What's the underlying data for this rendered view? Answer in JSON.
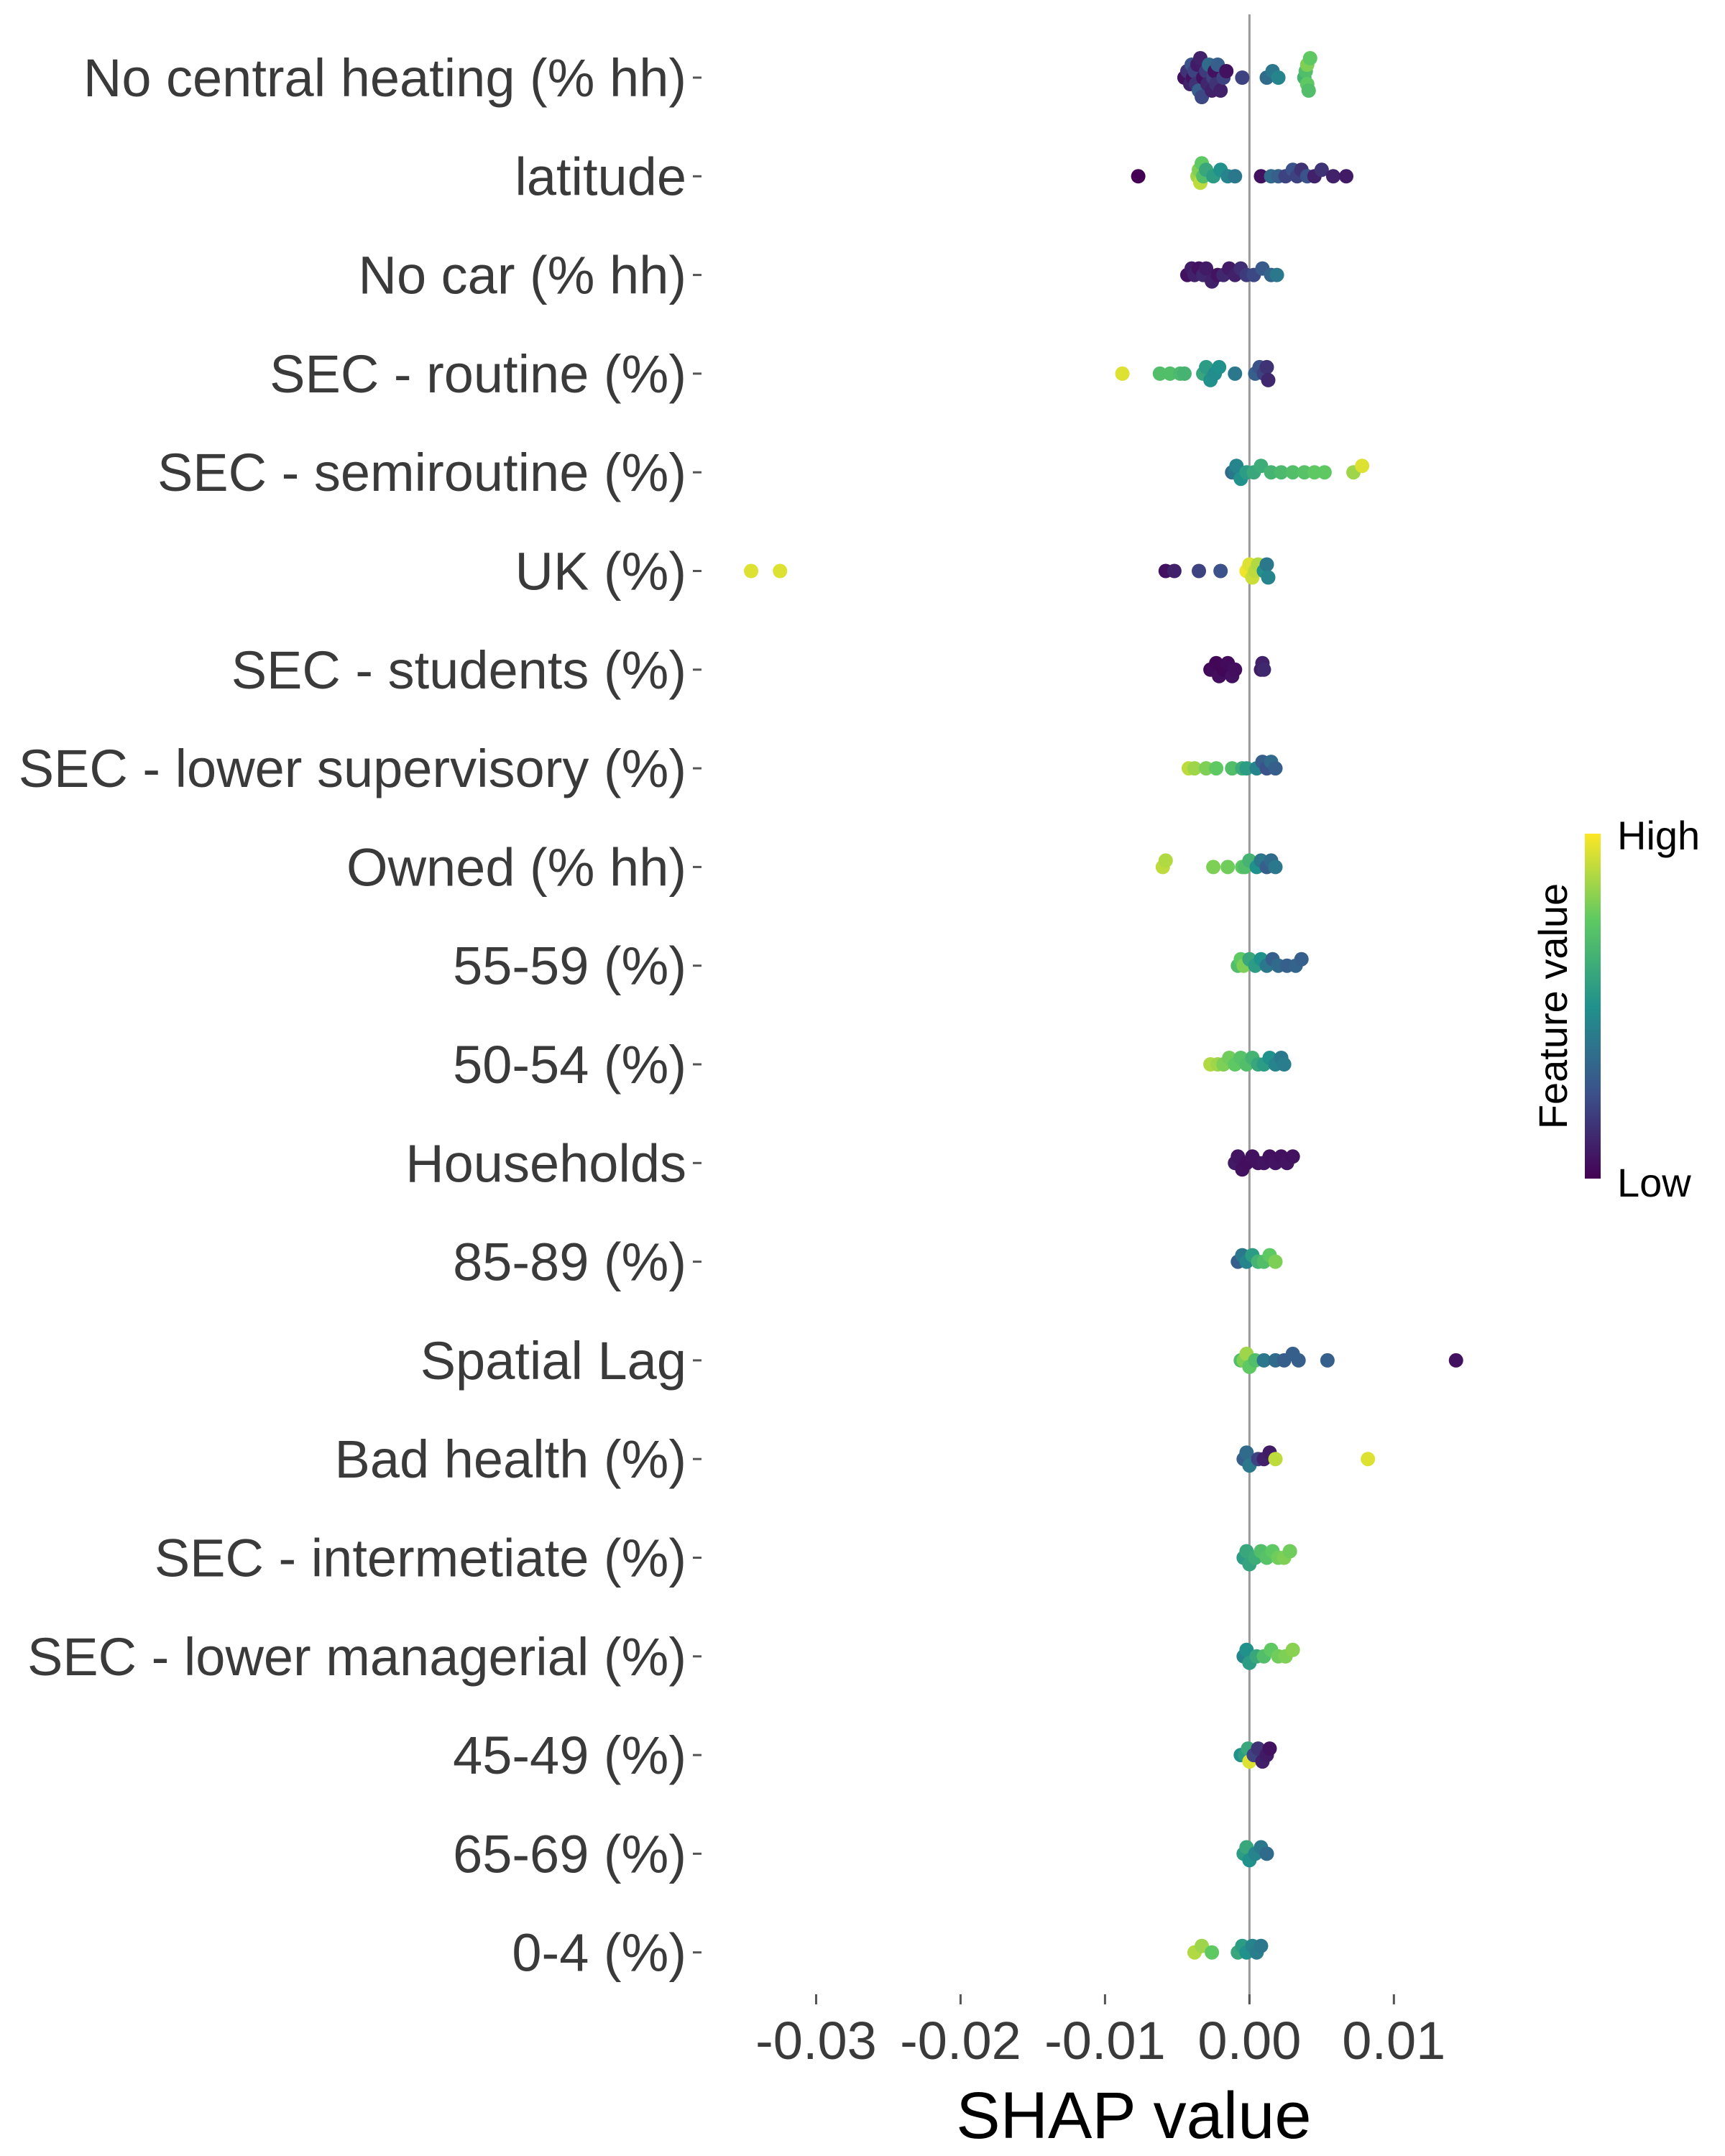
{
  "chart_data": {
    "type": "scatter",
    "subtype": "shap-beeswarm",
    "xlabel": "SHAP value",
    "xlim": [
      -0.035,
      0.017
    ],
    "xticks": [
      -0.03,
      -0.02,
      -0.01,
      0.0,
      0.01
    ],
    "xtick_labels": [
      "-0.03",
      "-0.02",
      "-0.01",
      "0.00",
      "0.01"
    ],
    "zero_line": true,
    "grid": false,
    "legend": {
      "title": "Feature value",
      "high_label": "High",
      "low_label": "Low",
      "placement": "right",
      "colormap": "viridis"
    },
    "features": [
      {
        "name": "No central heating (% hh)",
        "points": [
          [
            -0.0045,
            0.05
          ],
          [
            -0.0043,
            0.15
          ],
          [
            -0.0041,
            0.1
          ],
          [
            -0.004,
            0.25
          ],
          [
            -0.0039,
            0.05
          ],
          [
            -0.0038,
            0.2
          ],
          [
            -0.0037,
            0.15
          ],
          [
            -0.0036,
            0.08
          ],
          [
            -0.0035,
            0.3
          ],
          [
            -0.0034,
            0.1
          ],
          [
            -0.0033,
            0.22
          ],
          [
            -0.0032,
            0.05
          ],
          [
            -0.003,
            0.18
          ],
          [
            -0.0029,
            0.12
          ],
          [
            -0.0028,
            0.35
          ],
          [
            -0.0026,
            0.1
          ],
          [
            -0.0025,
            0.2
          ],
          [
            -0.0024,
            0.05
          ],
          [
            -0.0023,
            0.15
          ],
          [
            -0.0022,
            0.3
          ],
          [
            -0.002,
            0.1
          ],
          [
            -0.0018,
            0.2
          ],
          [
            -0.0016,
            0.05
          ],
          [
            -0.0005,
            0.2
          ],
          [
            0.0012,
            0.35
          ],
          [
            0.0016,
            0.4
          ],
          [
            0.002,
            0.45
          ],
          [
            0.0038,
            0.65
          ],
          [
            0.0039,
            0.7
          ],
          [
            0.004,
            0.75
          ],
          [
            0.004,
            0.8
          ],
          [
            0.0041,
            0.7
          ],
          [
            0.0042,
            0.75
          ]
        ]
      },
      {
        "name": "latitude",
        "points": [
          [
            -0.0077,
            0.0
          ],
          [
            -0.0036,
            0.85
          ],
          [
            -0.0035,
            0.8
          ],
          [
            -0.0034,
            0.9
          ],
          [
            -0.0033,
            0.75
          ],
          [
            -0.0032,
            0.7
          ],
          [
            -0.003,
            0.6
          ],
          [
            -0.0025,
            0.55
          ],
          [
            -0.002,
            0.5
          ],
          [
            -0.0015,
            0.45
          ],
          [
            -0.001,
            0.4
          ],
          [
            0.0008,
            0.05
          ],
          [
            0.0015,
            0.35
          ],
          [
            0.002,
            0.3
          ],
          [
            0.0025,
            0.2
          ],
          [
            0.003,
            0.25
          ],
          [
            0.0033,
            0.2
          ],
          [
            0.0036,
            0.15
          ],
          [
            0.004,
            0.25
          ],
          [
            0.0045,
            0.1
          ],
          [
            0.005,
            0.15
          ],
          [
            0.0058,
            0.1
          ],
          [
            0.0067,
            0.08
          ]
        ]
      },
      {
        "name": "No car (% hh)",
        "points": [
          [
            -0.0043,
            0.05
          ],
          [
            -0.004,
            0.08
          ],
          [
            -0.0038,
            0.1
          ],
          [
            -0.0035,
            0.05
          ],
          [
            -0.0032,
            0.12
          ],
          [
            -0.003,
            0.08
          ],
          [
            -0.0026,
            0.1
          ],
          [
            -0.0022,
            0.06
          ],
          [
            -0.0018,
            0.12
          ],
          [
            -0.0014,
            0.08
          ],
          [
            -0.001,
            0.1
          ],
          [
            -0.0006,
            0.14
          ],
          [
            -0.0002,
            0.18
          ],
          [
            0.0003,
            0.22
          ],
          [
            0.0009,
            0.28
          ],
          [
            0.0015,
            0.32
          ],
          [
            0.0019,
            0.4
          ]
        ]
      },
      {
        "name": "SEC - routine (%)",
        "points": [
          [
            -0.0088,
            0.95
          ],
          [
            -0.0062,
            0.7
          ],
          [
            -0.0055,
            0.7
          ],
          [
            -0.0048,
            0.68
          ],
          [
            -0.0045,
            0.65
          ],
          [
            -0.0032,
            0.6
          ],
          [
            -0.003,
            0.55
          ],
          [
            -0.0027,
            0.5
          ],
          [
            -0.0024,
            0.48
          ],
          [
            -0.0021,
            0.5
          ],
          [
            -0.001,
            0.4
          ],
          [
            0.0004,
            0.3
          ],
          [
            0.0007,
            0.25
          ],
          [
            0.001,
            0.2
          ],
          [
            0.0012,
            0.15
          ],
          [
            0.0013,
            0.12
          ]
        ]
      },
      {
        "name": "SEC - semiroutine (%)",
        "points": [
          [
            -0.0012,
            0.35
          ],
          [
            -0.001,
            0.4
          ],
          [
            -0.0009,
            0.45
          ],
          [
            -0.0006,
            0.5
          ],
          [
            -0.0002,
            0.55
          ],
          [
            0.0003,
            0.6
          ],
          [
            0.0008,
            0.62
          ],
          [
            0.0015,
            0.65
          ],
          [
            0.0022,
            0.68
          ],
          [
            0.003,
            0.7
          ],
          [
            0.0038,
            0.72
          ],
          [
            0.0045,
            0.75
          ],
          [
            0.0052,
            0.75
          ],
          [
            0.0072,
            0.85
          ],
          [
            0.0078,
            0.95
          ]
        ]
      },
      {
        "name": "UK (%)",
        "points": [
          [
            -0.0345,
            0.95
          ],
          [
            -0.0325,
            0.95
          ],
          [
            -0.0058,
            0.05
          ],
          [
            -0.0052,
            0.1
          ],
          [
            -0.0035,
            0.2
          ],
          [
            -0.002,
            0.25
          ],
          [
            -0.0002,
            0.98
          ],
          [
            0.0,
            0.95
          ],
          [
            0.0002,
            0.92
          ],
          [
            0.0004,
            0.9
          ],
          [
            0.0006,
            0.88
          ],
          [
            0.001,
            0.5
          ],
          [
            0.0012,
            0.4
          ],
          [
            0.0013,
            0.45
          ]
        ]
      },
      {
        "name": "SEC - students (%)",
        "points": [
          [
            -0.0027,
            0.02
          ],
          [
            -0.0025,
            0.03
          ],
          [
            -0.0023,
            0.02
          ],
          [
            -0.0021,
            0.04
          ],
          [
            -0.0018,
            0.02
          ],
          [
            -0.0015,
            0.03
          ],
          [
            -0.0012,
            0.05
          ],
          [
            -0.001,
            0.04
          ],
          [
            0.0008,
            0.08
          ],
          [
            0.0009,
            0.1
          ],
          [
            0.001,
            0.12
          ]
        ]
      },
      {
        "name": "SEC - lower supervisory (%)",
        "points": [
          [
            -0.0042,
            0.9
          ],
          [
            -0.0038,
            0.85
          ],
          [
            -0.003,
            0.8
          ],
          [
            -0.0023,
            0.75
          ],
          [
            -0.0012,
            0.7
          ],
          [
            -0.0005,
            0.62
          ],
          [
            -0.0002,
            0.55
          ],
          [
            0.0005,
            0.45
          ],
          [
            0.0009,
            0.3
          ],
          [
            0.0012,
            0.25
          ],
          [
            0.0015,
            0.35
          ],
          [
            0.0018,
            0.3
          ]
        ]
      },
      {
        "name": "Owned (% hh)",
        "points": [
          [
            -0.006,
            0.9
          ],
          [
            -0.0058,
            0.88
          ],
          [
            -0.0025,
            0.8
          ],
          [
            -0.0015,
            0.78
          ],
          [
            -0.0005,
            0.75
          ],
          [
            -0.0003,
            0.7
          ],
          [
            0.0,
            0.65
          ],
          [
            0.0005,
            0.5
          ],
          [
            0.0008,
            0.4
          ],
          [
            0.0012,
            0.3
          ],
          [
            0.0015,
            0.35
          ],
          [
            0.0018,
            0.4
          ]
        ]
      },
      {
        "name": "55-59 (%)",
        "points": [
          [
            -0.0008,
            0.7
          ],
          [
            -0.0006,
            0.75
          ],
          [
            -0.0004,
            0.8
          ],
          [
            0.0,
            0.6
          ],
          [
            0.0004,
            0.55
          ],
          [
            0.0008,
            0.5
          ],
          [
            0.0012,
            0.4
          ],
          [
            0.0016,
            0.3
          ],
          [
            0.002,
            0.35
          ],
          [
            0.0026,
            0.3
          ],
          [
            0.0032,
            0.32
          ],
          [
            0.0036,
            0.3
          ]
        ]
      },
      {
        "name": "50-54 (%)",
        "points": [
          [
            -0.0027,
            0.88
          ],
          [
            -0.0022,
            0.85
          ],
          [
            -0.0018,
            0.8
          ],
          [
            -0.0014,
            0.78
          ],
          [
            -0.001,
            0.75
          ],
          [
            -0.0006,
            0.72
          ],
          [
            -0.0002,
            0.7
          ],
          [
            0.0002,
            0.65
          ],
          [
            0.0006,
            0.6
          ],
          [
            0.001,
            0.55
          ],
          [
            0.0014,
            0.5
          ],
          [
            0.0018,
            0.45
          ],
          [
            0.0022,
            0.4
          ],
          [
            0.0024,
            0.42
          ]
        ]
      },
      {
        "name": "Households",
        "points": [
          [
            -0.001,
            0.08
          ],
          [
            -0.0008,
            0.06
          ],
          [
            -0.0005,
            0.05
          ],
          [
            -0.0002,
            0.04
          ],
          [
            0.0002,
            0.05
          ],
          [
            0.0006,
            0.05
          ],
          [
            0.001,
            0.06
          ],
          [
            0.0014,
            0.05
          ],
          [
            0.0018,
            0.06
          ],
          [
            0.0022,
            0.05
          ],
          [
            0.0026,
            0.06
          ],
          [
            0.003,
            0.05
          ]
        ]
      },
      {
        "name": "85-89 (%)",
        "points": [
          [
            -0.0008,
            0.3
          ],
          [
            -0.0005,
            0.4
          ],
          [
            -0.0002,
            0.45
          ],
          [
            0.0002,
            0.55
          ],
          [
            0.0006,
            0.65
          ],
          [
            0.001,
            0.7
          ],
          [
            0.0014,
            0.75
          ],
          [
            0.0018,
            0.8
          ]
        ]
      },
      {
        "name": "Spatial Lag",
        "points": [
          [
            -0.0006,
            0.7
          ],
          [
            -0.0004,
            0.8
          ],
          [
            -0.0002,
            0.85
          ],
          [
            0.0,
            0.75
          ],
          [
            0.0004,
            0.7
          ],
          [
            0.001,
            0.4
          ],
          [
            0.0018,
            0.35
          ],
          [
            0.0024,
            0.3
          ],
          [
            0.003,
            0.3
          ],
          [
            0.0034,
            0.3
          ],
          [
            0.0054,
            0.3
          ],
          [
            0.0143,
            0.05
          ]
        ]
      },
      {
        "name": "Bad health (%)",
        "points": [
          [
            -0.0004,
            0.3
          ],
          [
            -0.0002,
            0.35
          ],
          [
            0.0,
            0.4
          ],
          [
            0.0006,
            0.2
          ],
          [
            0.001,
            0.1
          ],
          [
            0.0014,
            0.08
          ],
          [
            0.0018,
            0.9
          ],
          [
            0.0082,
            0.95
          ]
        ]
      },
      {
        "name": "SEC - intermetiate (%)",
        "points": [
          [
            -0.0004,
            0.55
          ],
          [
            -0.0002,
            0.6
          ],
          [
            0.0,
            0.58
          ],
          [
            0.0004,
            0.62
          ],
          [
            0.0008,
            0.7
          ],
          [
            0.0012,
            0.72
          ],
          [
            0.0016,
            0.75
          ],
          [
            0.002,
            0.78
          ],
          [
            0.0024,
            0.8
          ],
          [
            0.0028,
            0.78
          ]
        ]
      },
      {
        "name": "SEC - lower managerial (%)",
        "points": [
          [
            -0.0004,
            0.45
          ],
          [
            -0.0002,
            0.5
          ],
          [
            0.0,
            0.55
          ],
          [
            0.0005,
            0.6
          ],
          [
            0.001,
            0.7
          ],
          [
            0.0015,
            0.75
          ],
          [
            0.002,
            0.78
          ],
          [
            0.0025,
            0.8
          ],
          [
            0.003,
            0.82
          ]
        ]
      },
      {
        "name": "45-49 (%)",
        "points": [
          [
            -0.0006,
            0.5
          ],
          [
            -0.0003,
            0.55
          ],
          [
            -0.0001,
            0.6
          ],
          [
            0.0,
            0.95
          ],
          [
            0.0003,
            0.2
          ],
          [
            0.0006,
            0.15
          ],
          [
            0.0009,
            0.1
          ],
          [
            0.0012,
            0.08
          ],
          [
            0.0014,
            0.05
          ]
        ]
      },
      {
        "name": "65-69 (%)",
        "points": [
          [
            -0.0004,
            0.55
          ],
          [
            -0.0002,
            0.6
          ],
          [
            0.0,
            0.5
          ],
          [
            0.0004,
            0.45
          ],
          [
            0.0008,
            0.4
          ],
          [
            0.0012,
            0.35
          ]
        ]
      },
      {
        "name": "0-4 (%)",
        "points": [
          [
            -0.0038,
            0.88
          ],
          [
            -0.0033,
            0.85
          ],
          [
            -0.0026,
            0.75
          ],
          [
            -0.0008,
            0.6
          ],
          [
            -0.0005,
            0.55
          ],
          [
            -0.0002,
            0.5
          ],
          [
            0.0002,
            0.45
          ],
          [
            0.0005,
            0.42
          ],
          [
            0.0008,
            0.4
          ]
        ]
      }
    ]
  }
}
